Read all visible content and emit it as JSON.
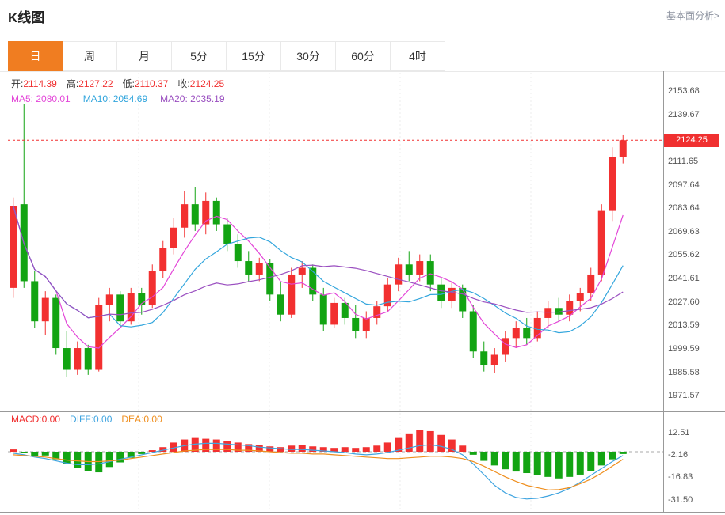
{
  "header": {
    "title": "K线图",
    "link": "基本面分析>"
  },
  "tabs": {
    "active_index": 0,
    "items": [
      {
        "label": "日"
      },
      {
        "label": "周"
      },
      {
        "label": "月"
      },
      {
        "label": "5分"
      },
      {
        "label": "15分"
      },
      {
        "label": "30分"
      },
      {
        "label": "60分"
      },
      {
        "label": "4时"
      }
    ]
  },
  "legend": {
    "ohlc": [
      {
        "label": "开:",
        "value": "2114.39"
      },
      {
        "label": "高:",
        "value": "2127.22"
      },
      {
        "label": "低:",
        "value": "2110.37"
      },
      {
        "label": "收:",
        "value": "2124.25"
      }
    ],
    "ma": [
      "MA5: 2080.01",
      "MA10: 2054.69",
      "MA20: 2035.19"
    ],
    "macd": [
      "MACD:0.00",
      "DIFF:0.00",
      "DEA:0.00"
    ]
  },
  "axis": {
    "current_price": "2124.25"
  },
  "colors": {
    "up": "#f23030",
    "down": "#13a413",
    "ma5": "#e346d8",
    "ma10": "#33a6dd",
    "ma20": "#9a4fc0",
    "diff": "#3fa4e0",
    "dea": "#ef8f1f",
    "tab_active": "#f07d21",
    "price_tag_bg": "#f03030",
    "grid": "#ececec",
    "frame": "#999999"
  },
  "chart_data": {
    "type": "candlestick",
    "title": "K线图",
    "y_axis_labels": [
      2153.68,
      2139.67,
      2111.65,
      2097.64,
      2083.64,
      2069.63,
      2055.62,
      2041.61,
      2027.6,
      2013.59,
      1999.59,
      1985.58,
      1971.57
    ],
    "current_price": 2124.25,
    "ohlc_legend": {
      "open": 2114.39,
      "high": 2127.22,
      "low": 2110.37,
      "close": 2124.25
    },
    "ma_periods": [
      5,
      10,
      20
    ],
    "candles": [
      [
        2036,
        2090,
        2030,
        2085
      ],
      [
        2086,
        2146,
        2036,
        2040
      ],
      [
        2040,
        2046,
        2012,
        2016
      ],
      [
        2016,
        2034,
        2008,
        2030
      ],
      [
        2030,
        2032,
        1996,
        2000
      ],
      [
        2000,
        2010,
        1983,
        1987
      ],
      [
        1987,
        2004,
        1984,
        2000
      ],
      [
        2000,
        2002,
        1984,
        1987
      ],
      [
        1987,
        2030,
        1986,
        2026
      ],
      [
        2026,
        2036,
        2016,
        2032
      ],
      [
        2032,
        2034,
        2012,
        2016
      ],
      [
        2016,
        2036,
        2014,
        2033
      ],
      [
        2033,
        2036,
        2020,
        2026
      ],
      [
        2026,
        2050,
        2024,
        2046
      ],
      [
        2046,
        2064,
        2042,
        2060
      ],
      [
        2060,
        2078,
        2056,
        2072
      ],
      [
        2072,
        2094,
        2066,
        2086
      ],
      [
        2086,
        2096,
        2070,
        2074
      ],
      [
        2074,
        2093,
        2068,
        2088
      ],
      [
        2088,
        2090,
        2070,
        2074
      ],
      [
        2074,
        2078,
        2058,
        2062
      ],
      [
        2062,
        2068,
        2048,
        2052
      ],
      [
        2052,
        2058,
        2040,
        2044
      ],
      [
        2044,
        2054,
        2040,
        2051
      ],
      [
        2051,
        2053,
        2028,
        2032
      ],
      [
        2032,
        2040,
        2016,
        2020
      ],
      [
        2020,
        2048,
        2018,
        2044
      ],
      [
        2044,
        2052,
        2036,
        2048
      ],
      [
        2048,
        2050,
        2028,
        2032
      ],
      [
        2032,
        2036,
        2010,
        2014
      ],
      [
        2014,
        2030,
        2012,
        2027
      ],
      [
        2027,
        2030,
        2014,
        2018
      ],
      [
        2018,
        2026,
        2006,
        2010
      ],
      [
        2010,
        2022,
        2006,
        2018
      ],
      [
        2018,
        2028,
        2014,
        2025
      ],
      [
        2025,
        2042,
        2022,
        2038
      ],
      [
        2038,
        2054,
        2034,
        2050
      ],
      [
        2050,
        2058,
        2040,
        2044
      ],
      [
        2044,
        2056,
        2040,
        2052
      ],
      [
        2052,
        2056,
        2034,
        2038
      ],
      [
        2038,
        2042,
        2024,
        2028
      ],
      [
        2028,
        2040,
        2024,
        2036
      ],
      [
        2036,
        2038,
        2018,
        2022
      ],
      [
        2022,
        2026,
        1994,
        1998
      ],
      [
        1998,
        2004,
        1986,
        1990
      ],
      [
        1990,
        2000,
        1985,
        1996
      ],
      [
        1996,
        2010,
        1992,
        2006
      ],
      [
        2006,
        2016,
        2000,
        2012
      ],
      [
        2012,
        2018,
        2002,
        2006
      ],
      [
        2006,
        2022,
        2004,
        2018
      ],
      [
        2018,
        2028,
        2012,
        2024
      ],
      [
        2024,
        2030,
        2016,
        2020
      ],
      [
        2020,
        2032,
        2016,
        2028
      ],
      [
        2028,
        2036,
        2022,
        2033
      ],
      [
        2033,
        2048,
        2028,
        2044
      ],
      [
        2044,
        2086,
        2040,
        2082
      ],
      [
        2082,
        2120,
        2076,
        2114
      ],
      [
        2114.39,
        2127.22,
        2110.37,
        2124.25
      ]
    ],
    "macd": {
      "y_axis_labels": [
        12.51,
        -2.16,
        -16.83,
        -31.5
      ],
      "histogram": [
        1.5,
        -1,
        -3,
        -2.5,
        -5,
        -8,
        -10.5,
        -12.5,
        -13.5,
        -10,
        -7,
        -4,
        -1.5,
        1,
        3,
        6,
        8,
        9,
        8.5,
        8,
        7,
        6,
        5,
        4.5,
        3.5,
        3,
        4,
        4.5,
        3.5,
        3,
        2.5,
        3,
        2.5,
        3,
        4,
        6,
        9,
        12,
        14,
        13.5,
        11,
        8,
        4,
        -2,
        -6,
        -9,
        -11.5,
        -13,
        -14,
        -15.5,
        -16.5,
        -17.5,
        -16.5,
        -15,
        -12.5,
        -9,
        -5,
        -1.5
      ],
      "diff": [
        -1,
        -2,
        -3.5,
        -4.5,
        -6,
        -7.5,
        -8.5,
        -8.5,
        -8,
        -6.5,
        -5,
        -3.5,
        -2,
        -0.5,
        1,
        2.5,
        4,
        5,
        5.5,
        5.5,
        5,
        4.5,
        4,
        3,
        2.5,
        2,
        1.5,
        1.5,
        1,
        0.5,
        0,
        -0.5,
        -1.5,
        -2,
        -1.5,
        -0.5,
        1,
        2.5,
        4,
        4.5,
        3.5,
        1.5,
        -2,
        -8,
        -15,
        -22,
        -27,
        -30,
        -31,
        -30.5,
        -29,
        -27,
        -24,
        -20,
        -15.5,
        -11,
        -6.5,
        -2.5
      ],
      "dea": [
        -2,
        -2.5,
        -3,
        -3.5,
        -4.5,
        -5.5,
        -6,
        -6.5,
        -6.5,
        -6,
        -5.5,
        -4.5,
        -3.5,
        -2.5,
        -1.5,
        -0.5,
        0.5,
        1,
        1.5,
        1.5,
        1.5,
        1,
        1,
        0.5,
        0,
        -0.5,
        -1,
        -1,
        -1.5,
        -1.5,
        -2,
        -2.5,
        -3,
        -3.5,
        -4,
        -4.5,
        -4.5,
        -4,
        -3.5,
        -3,
        -3,
        -3.5,
        -4.5,
        -6.5,
        -9.5,
        -13,
        -16.5,
        -19.5,
        -22,
        -23.5,
        -25,
        -24.8,
        -23.5,
        -21,
        -18,
        -14,
        -9.5,
        -5
      ]
    }
  }
}
